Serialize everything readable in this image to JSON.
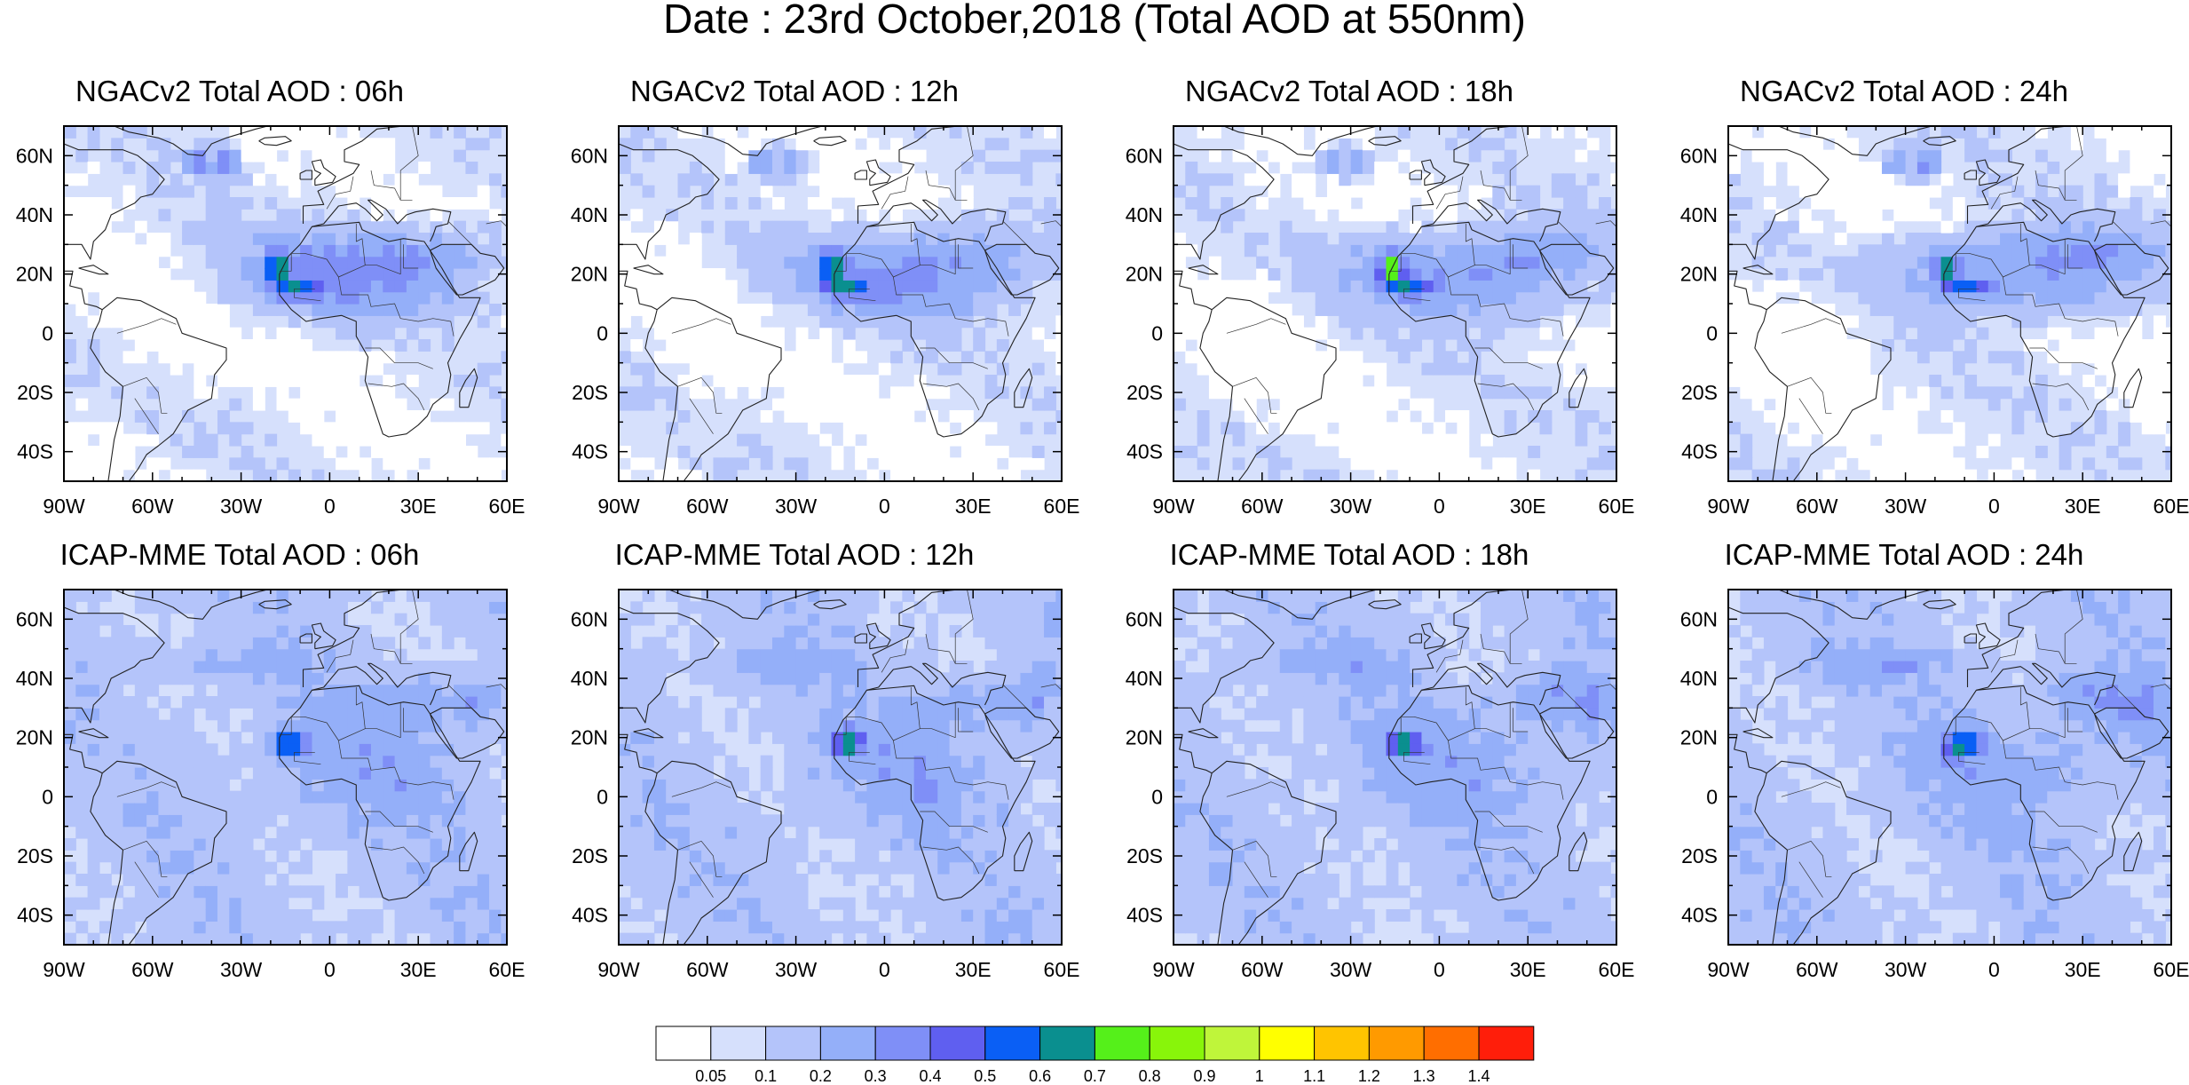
{
  "title": "Date : 23rd October,2018 (Total AOD at 550nm)",
  "panels": [
    {
      "title": "NGACv2 Total AOD : 06h",
      "model": "NGACv2",
      "hour": "06h"
    },
    {
      "title": "NGACv2 Total AOD : 12h",
      "model": "NGACv2",
      "hour": "12h"
    },
    {
      "title": "NGACv2 Total AOD : 18h",
      "model": "NGACv2",
      "hour": "18h"
    },
    {
      "title": "NGACv2 Total AOD : 24h",
      "model": "NGACv2",
      "hour": "24h"
    },
    {
      "title": "ICAP-MME Total AOD : 06h",
      "model": "ICAP-MME",
      "hour": "06h"
    },
    {
      "title": "ICAP-MME Total AOD : 12h",
      "model": "ICAP-MME",
      "hour": "12h"
    },
    {
      "title": "ICAP-MME Total AOD : 18h",
      "model": "ICAP-MME",
      "hour": "18h"
    },
    {
      "title": "ICAP-MME Total AOD : 24h",
      "model": "ICAP-MME",
      "hour": "24h"
    }
  ],
  "axes": {
    "lon_range": [
      -90,
      60
    ],
    "lat_range": [
      -50,
      70
    ],
    "x_ticks": [
      {
        "value": -90,
        "label": "90W"
      },
      {
        "value": -60,
        "label": "60W"
      },
      {
        "value": -30,
        "label": "30W"
      },
      {
        "value": 0,
        "label": "0"
      },
      {
        "value": 30,
        "label": "30E"
      },
      {
        "value": 60,
        "label": "60E"
      }
    ],
    "y_ticks": [
      {
        "value": 60,
        "label": "60N"
      },
      {
        "value": 40,
        "label": "40N"
      },
      {
        "value": 20,
        "label": "20N"
      },
      {
        "value": 0,
        "label": "0"
      },
      {
        "value": -20,
        "label": "20S"
      },
      {
        "value": -40,
        "label": "40S"
      }
    ]
  },
  "colorbar": {
    "levels": [
      "0.05",
      "0.1",
      "0.2",
      "0.3",
      "0.4",
      "0.5",
      "0.6",
      "0.7",
      "0.8",
      "0.9",
      "1",
      "1.1",
      "1.2",
      "1.3",
      "1.4"
    ],
    "colors": [
      "#ffffff",
      "#d6e0fc",
      "#b4c4fa",
      "#94aff9",
      "#7f8ff7",
      "#5f5ff0",
      "#0a5ff5",
      "#0a8f8f",
      "#55f01a",
      "#88f50a",
      "#bff53a",
      "#ffff00",
      "#ffc400",
      "#ff9a00",
      "#ff6e00",
      "#ff1e0a"
    ]
  }
}
